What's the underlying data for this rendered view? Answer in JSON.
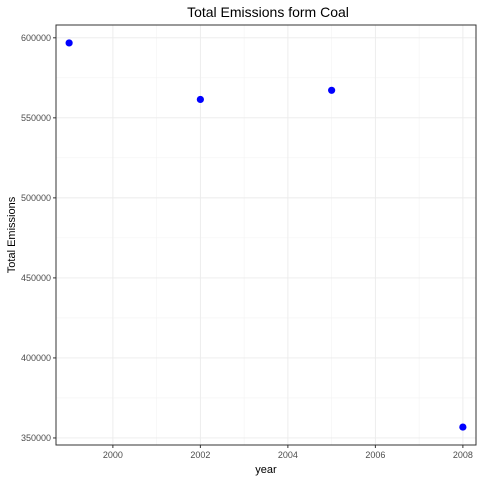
{
  "chart_data": {
    "type": "scatter",
    "title": "Total Emissions form Coal",
    "xlabel": "year",
    "ylabel": "Total Emissions",
    "x": [
      1999,
      2002,
      2005,
      2008
    ],
    "y": [
      596800,
      561500,
      567200,
      356800
    ],
    "xlim": [
      1998.7,
      2008.3
    ],
    "ylim": [
      345600,
      608000
    ],
    "xticks": [
      2000,
      2002,
      2004,
      2006,
      2008
    ],
    "yticks": [
      350000,
      400000,
      450000,
      500000,
      550000,
      600000
    ],
    "xtick_labels": [
      "2000",
      "2002",
      "2004",
      "2006",
      "2008"
    ],
    "ytick_labels": [
      "350000",
      "400000",
      "450000",
      "500000",
      "550000",
      "600000"
    ],
    "point_color": "#0000ff",
    "grid": true,
    "legend": "none"
  }
}
